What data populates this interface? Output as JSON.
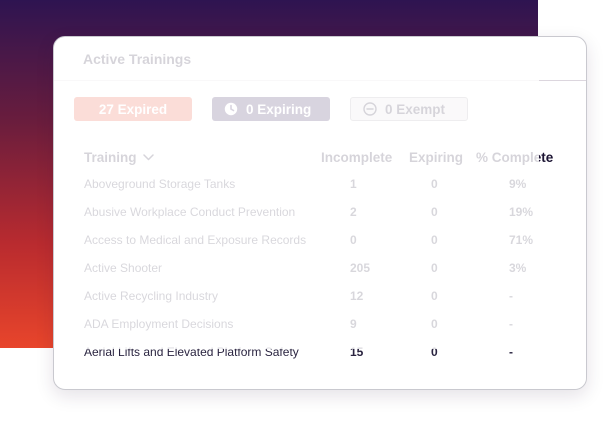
{
  "card": {
    "title": "Active Trainings"
  },
  "badges": {
    "expired": "27 Expired",
    "expiring": "0 Expiring",
    "exempt": "0 Exempt"
  },
  "table": {
    "headers": {
      "training": "Training",
      "incomplete": "Incomplete",
      "expiring": "Expiring",
      "complete": "% Complete"
    },
    "rows": [
      {
        "name": "Aboveground Storage Tanks",
        "incomplete": "1",
        "expiring": "0",
        "complete": "9%"
      },
      {
        "name": "Abusive Workplace Conduct Prevention",
        "incomplete": "2",
        "expiring": "0",
        "complete": "19%"
      },
      {
        "name": "Access to Medical and Exposure Records",
        "incomplete": "0",
        "expiring": "0",
        "complete": "71%"
      },
      {
        "name": "Active Shooter",
        "incomplete": "205",
        "expiring": "0",
        "complete": "3%"
      },
      {
        "name": "Active Recycling Industry",
        "incomplete": "12",
        "expiring": "0",
        "complete": "-"
      },
      {
        "name": "ADA Employment Decisions",
        "incomplete": "9",
        "expiring": "0",
        "complete": "-"
      },
      {
        "name": "Aerial Lifts and Elevated Platform Safety",
        "incomplete": "15",
        "expiring": "0",
        "complete": "-"
      }
    ]
  },
  "icons": {
    "expiring": "clock-icon",
    "exempt": "minus-circle-icon",
    "sort": "chevron-down-icon"
  },
  "colors": {
    "expired": "#e8432b",
    "expiring": "#2b1150",
    "exempt": "#e0dde3",
    "gradient_top": "#2e1451",
    "gradient_bottom": "#e8452b"
  }
}
